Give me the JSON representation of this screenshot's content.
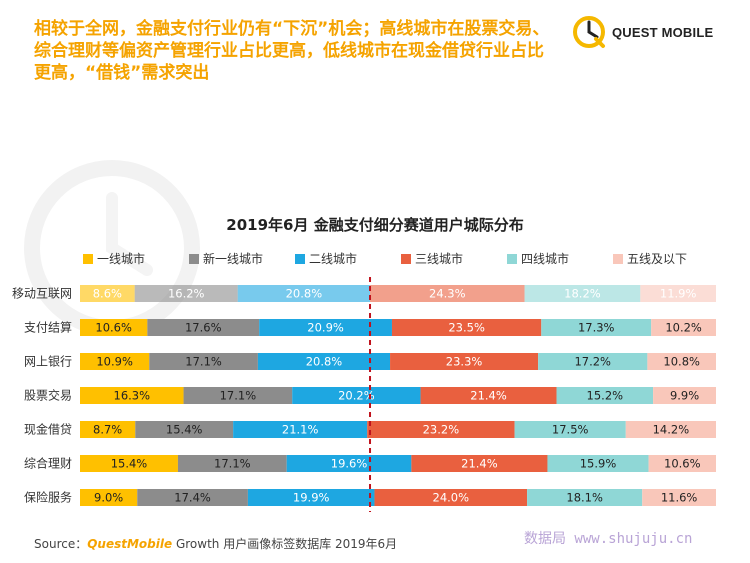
{
  "headline": "相较于全网，金融支付行业仍有“下沉”机会；高线城市在股票交易、综合理财等偏资产管理行业占比更高，低线城市在现金借贷行业占比更高，“借钱”需求突出",
  "brand": {
    "name": "QUEST MOBILE",
    "icon": "questmobile-logo-icon"
  },
  "chart_data": {
    "type": "bar",
    "stacked": true,
    "orientation": "horizontal",
    "normalized_percent": true,
    "title": "2019年6月 金融支付细分赛道用户城际分布",
    "legend_position": "top",
    "categories": [
      "移动互联网",
      "支付结算",
      "网上银行",
      "股票交易",
      "现金借贷",
      "综合理财",
      "保险服务"
    ],
    "series": [
      {
        "name": "一线城市",
        "color": "#ffc000",
        "values": [
          8.6,
          10.6,
          10.9,
          16.3,
          8.7,
          15.4,
          9.0
        ],
        "labels": [
          "8.6%",
          "10.6%",
          "10.9%",
          "16.3%",
          "8.7%",
          "15.4%",
          "9.0%"
        ]
      },
      {
        "name": "新一线城市",
        "color": "#8c8c8c",
        "values": [
          16.2,
          17.6,
          17.1,
          17.1,
          15.4,
          17.1,
          17.4
        ],
        "labels": [
          "16.2%",
          "17.6%",
          "17.1%",
          "17.1%",
          "15.4%",
          "17.1%",
          "17.4%"
        ]
      },
      {
        "name": "二线城市",
        "color": "#1ea7e1",
        "values": [
          20.8,
          20.9,
          20.8,
          20.2,
          21.1,
          19.6,
          19.9
        ],
        "labels": [
          "20.8%",
          "20.9%",
          "20.8%",
          "20.2%",
          "21.1%",
          "19.6%",
          "19.9%"
        ]
      },
      {
        "name": "三线城市",
        "color": "#e9603f",
        "values": [
          24.3,
          23.5,
          23.3,
          21.4,
          23.2,
          21.4,
          24.0
        ],
        "labels": [
          "24.3%",
          "23.5%",
          "23.3%",
          "21.4%",
          "23.2%",
          "21.4%",
          "24.0%"
        ]
      },
      {
        "name": "四线城市",
        "color": "#8fd7d6",
        "values": [
          18.2,
          17.3,
          17.2,
          15.2,
          17.5,
          15.9,
          18.1
        ],
        "labels": [
          "18.2%",
          "17.3%",
          "17.2%",
          "15.2%",
          "17.5%",
          "15.9%",
          "18.1%"
        ]
      },
      {
        "name": "五线及以下",
        "color": "#f9c7ba",
        "values": [
          11.9,
          10.2,
          10.8,
          9.9,
          14.2,
          10.6,
          11.6
        ],
        "labels": [
          "11.9%",
          "10.2%",
          "10.8%",
          "9.9%",
          "14.2%",
          "10.6%",
          "11.6%"
        ]
      }
    ],
    "faded_categories": [
      "移动互联网"
    ],
    "reference_line": {
      "value": 45.6,
      "style": "dashed",
      "color": "#c0121c"
    }
  },
  "source": {
    "label": "Source：",
    "brand": "QuestMobile",
    "text": " Growth 用户画像标签数据库 2019年6月"
  },
  "stamp": "数据局 www.shujuju.cn"
}
